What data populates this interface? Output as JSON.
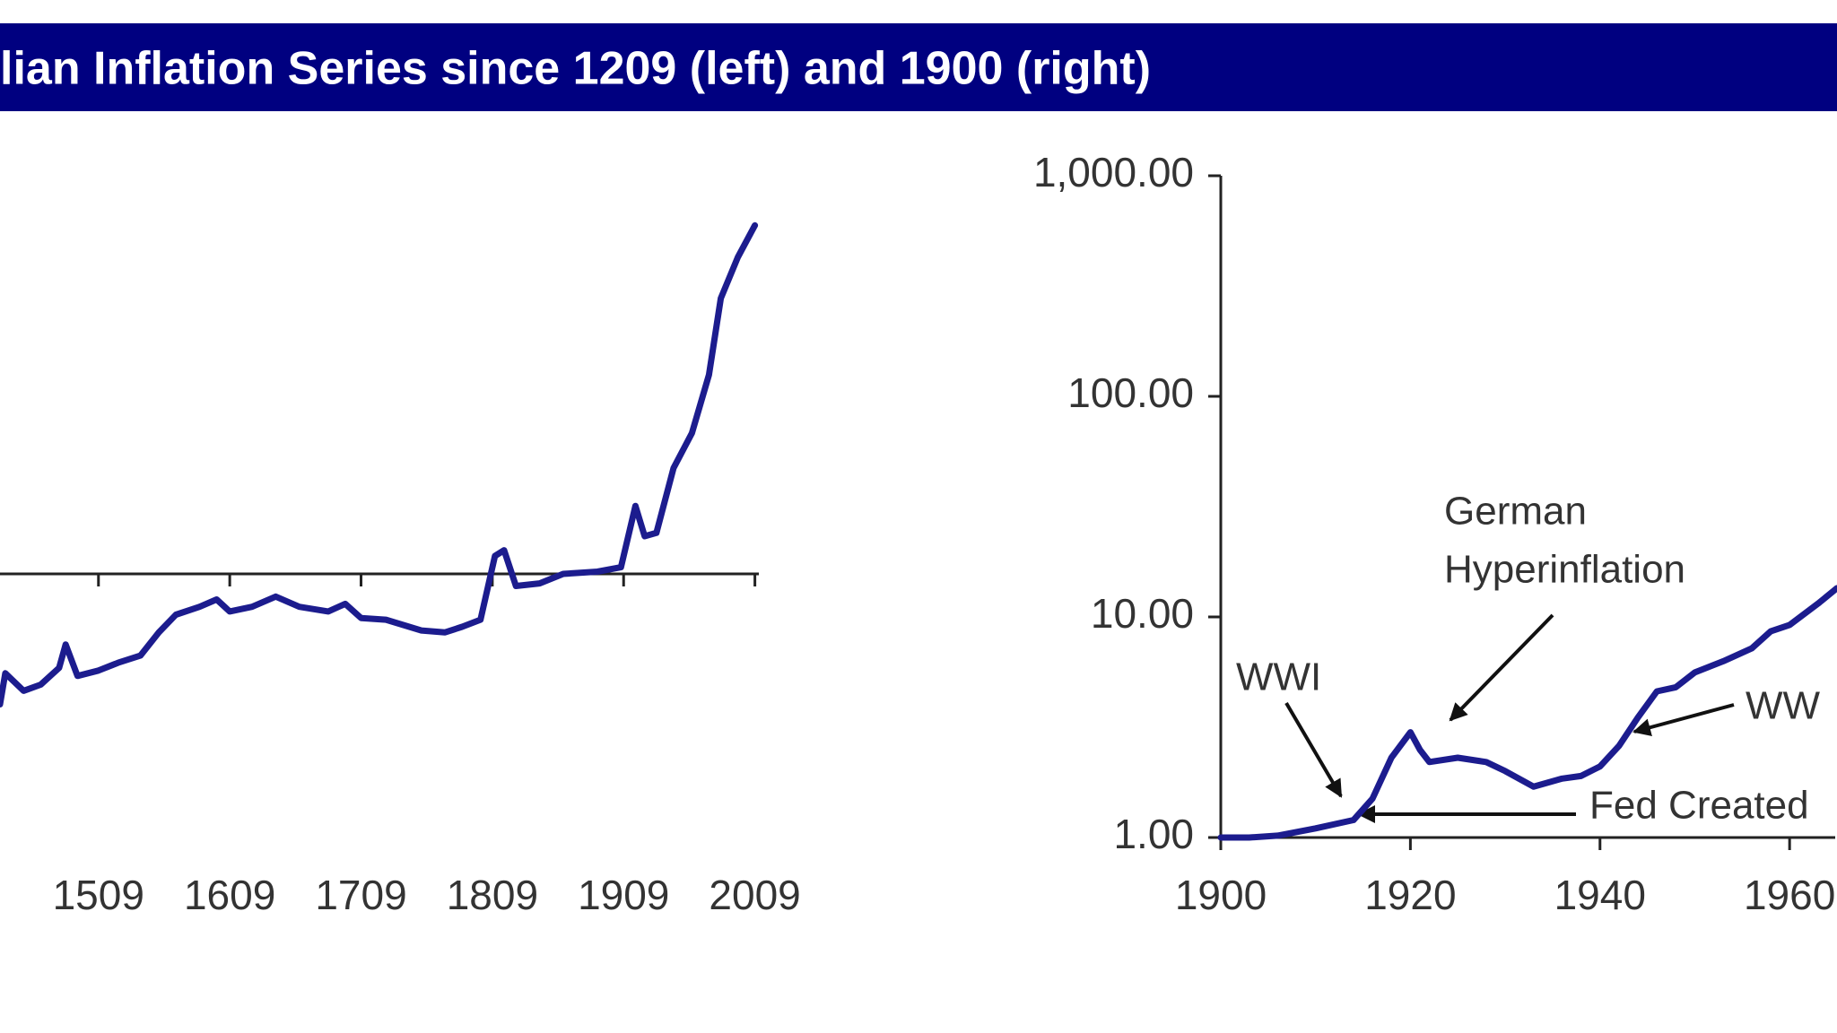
{
  "title": "lian Inflation Series since 1209 (left) and 1900 (right)",
  "chart_data": [
    {
      "type": "line",
      "log_y": true,
      "color": "#1c1c8e",
      "x_axis_crossing": 1,
      "xlim": [
        1434,
        2012
      ],
      "xticks": [
        1509,
        1609,
        1709,
        1809,
        1909,
        2009
      ],
      "ylim": [
        0.1,
        100
      ],
      "x": [
        1434,
        1438,
        1452,
        1465,
        1479,
        1484,
        1493,
        1509,
        1524,
        1541,
        1555,
        1568,
        1586,
        1599,
        1609,
        1626,
        1644,
        1662,
        1684,
        1697,
        1709,
        1728,
        1755,
        1773,
        1786,
        1800,
        1811,
        1818,
        1827,
        1845,
        1863,
        1889,
        1907,
        1918,
        1925,
        1934,
        1947,
        1961,
        1974,
        1983,
        1996,
        2009
      ],
      "values": [
        0.32,
        0.42,
        0.36,
        0.38,
        0.44,
        0.54,
        0.41,
        0.43,
        0.46,
        0.49,
        0.6,
        0.7,
        0.75,
        0.8,
        0.72,
        0.75,
        0.82,
        0.75,
        0.72,
        0.77,
        0.68,
        0.67,
        0.61,
        0.6,
        0.63,
        0.67,
        1.17,
        1.23,
        0.9,
        0.92,
        1.0,
        1.02,
        1.06,
        1.81,
        1.39,
        1.43,
        2.52,
        3.42,
        5.69,
        11.1,
        15.9,
        21.0
      ]
    },
    {
      "type": "line",
      "log_y": true,
      "color": "#1c1c8e",
      "xlim": [
        1900,
        1965
      ],
      "xticks": [
        1900,
        1920,
        1940,
        1960
      ],
      "ylim": [
        1,
        1000
      ],
      "yticks": [
        {
          "value": 1000,
          "label": "1,000.00"
        },
        {
          "value": 100,
          "label": "100.00"
        },
        {
          "value": 10,
          "label": "10.00"
        },
        {
          "value": 1,
          "label": "1.00"
        }
      ],
      "x": [
        1900,
        1903,
        1906,
        1910,
        1914,
        1916,
        1918,
        1920,
        1921,
        1922,
        1925,
        1928,
        1930,
        1933,
        1936,
        1938,
        1940,
        1942,
        1944,
        1946,
        1948,
        1950,
        1953,
        1956,
        1958,
        1960,
        1963,
        1965
      ],
      "values": [
        1.0,
        1.0,
        1.02,
        1.1,
        1.2,
        1.5,
        2.3,
        3.0,
        2.5,
        2.2,
        2.3,
        2.2,
        2.0,
        1.7,
        1.85,
        1.9,
        2.1,
        2.6,
        3.5,
        4.6,
        4.8,
        5.6,
        6.3,
        7.2,
        8.6,
        9.2,
        11.5,
        13.5
      ],
      "annotations": [
        "WWI",
        "German",
        "Hyperinflation",
        "WW",
        "Fed Created"
      ]
    }
  ]
}
